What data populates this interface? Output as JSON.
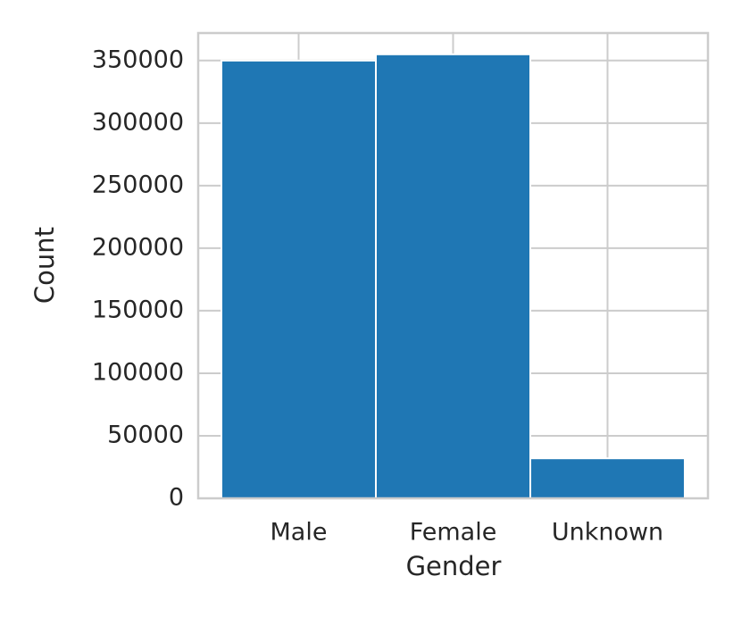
{
  "chart_data": {
    "type": "bar",
    "x_label": "Gender",
    "y_label": "Count",
    "categories": [
      "Male",
      "Female",
      "Unknown"
    ],
    "values": [
      350000,
      355000,
      32000
    ],
    "color": "#1f77b4",
    "ylim": [
      0,
      372000
    ],
    "yticks": [
      0,
      50000,
      100000,
      150000,
      200000,
      250000,
      300000,
      350000
    ],
    "grid": true
  }
}
